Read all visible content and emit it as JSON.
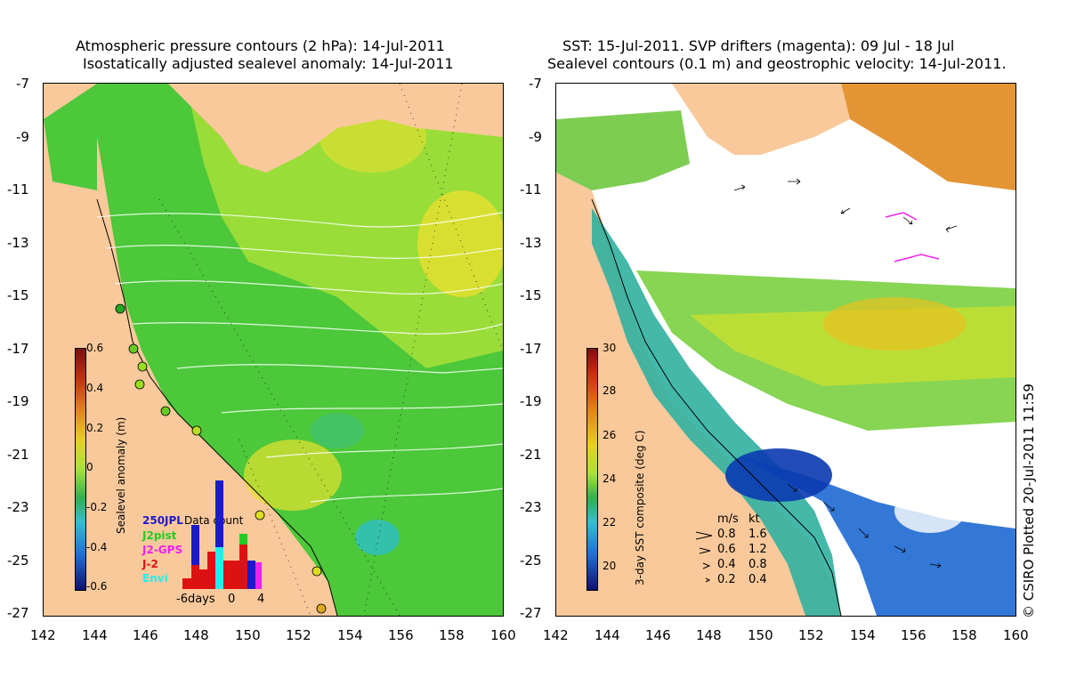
{
  "left_panel": {
    "title_line1": "Atmospheric pressure contours (2 hPa): 14-Jul-2011",
    "title_line2": "Isostatically adjusted sealevel anomaly: 14-Jul-2011",
    "colorbar": {
      "title": "Sealevel anomaly (m)",
      "ticks": [
        "0.6",
        "0.4",
        "0.2",
        "0",
        "-0.2",
        "-0.4",
        "-0.6"
      ]
    },
    "data_count": {
      "title": "Data count",
      "count_label": "250",
      "series": [
        {
          "name": "JPL",
          "color": "#1a1acc"
        },
        {
          "name": "J2pist",
          "color": "#22cc22"
        },
        {
          "name": "J2-GPS",
          "color": "#ee22ee"
        },
        {
          "name": "J-2",
          "color": "#dd1111"
        },
        {
          "name": "Envi",
          "color": "#22eeee"
        }
      ],
      "xlabels": [
        "-6days",
        "0",
        "4"
      ]
    }
  },
  "right_panel": {
    "title_line1": "SST: 15-Jul-2011. SVP drifters (magenta): 09 Jul - 18 Jul",
    "title_line2": "Sealevel contours (0.1 m) and geostrophic velocity: 14-Jul-2011.",
    "colorbar": {
      "title": "3-day SST composite (deg C)",
      "ticks": [
        "30",
        "28",
        "26",
        "24",
        "22",
        "20"
      ]
    },
    "velocity_legend": {
      "header_ms": "m/s",
      "header_kt": "kt",
      "rows": [
        {
          "ms": "0.8",
          "kt": "1.6"
        },
        {
          "ms": "0.6",
          "kt": "1.2"
        },
        {
          "ms": "0.4",
          "kt": "0.8"
        },
        {
          "ms": "0.2",
          "kt": "0.4"
        }
      ]
    },
    "credit": "© CSIRO Plotted 20-Jul-2011 11:59"
  },
  "y_axis": [
    "-7",
    "-9",
    "-11",
    "-13",
    "-15",
    "-17",
    "-19",
    "-21",
    "-23",
    "-25",
    "-27"
  ],
  "x_axis": [
    "142",
    "144",
    "146",
    "148",
    "150",
    "152",
    "154",
    "156",
    "158",
    "160"
  ],
  "colors": {
    "land": "#f9c99b",
    "ocean_green": "#4cc83a",
    "ocean_lime": "#a8e03a",
    "ocean_yellow": "#e8e030",
    "ocean_cyan": "#30c0c0",
    "sst_blue": "#1060d0",
    "sst_orange": "#e08a20"
  }
}
